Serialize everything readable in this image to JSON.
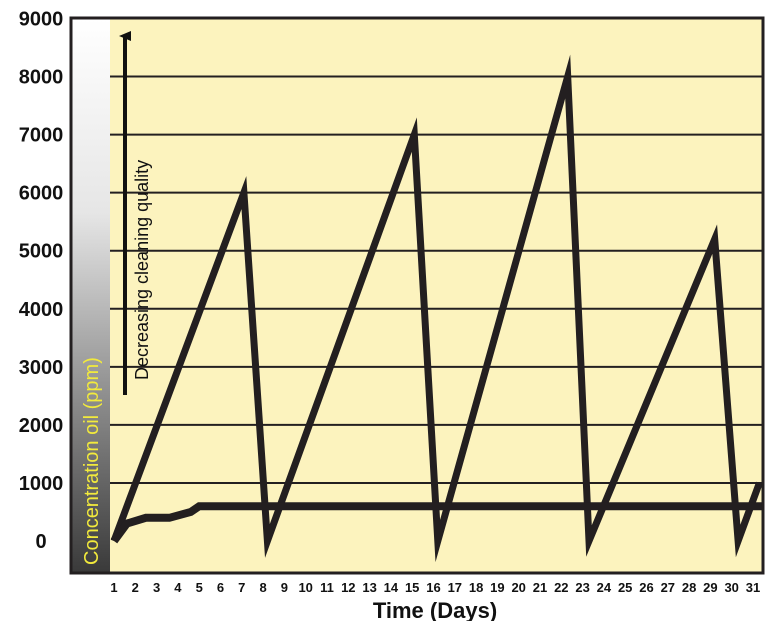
{
  "chart_data": {
    "type": "line",
    "xlabel": "Time (Days)",
    "ylabel": "Concentration oil (ppm)",
    "annotation": "Decreasing cleaning quality",
    "xlim": [
      1,
      31
    ],
    "ylim": [
      0,
      9000
    ],
    "x_ticks": [
      1,
      2,
      3,
      4,
      5,
      6,
      7,
      8,
      9,
      10,
      11,
      12,
      13,
      14,
      15,
      16,
      17,
      18,
      19,
      20,
      21,
      22,
      23,
      24,
      25,
      26,
      27,
      28,
      29,
      30,
      31
    ],
    "y_ticks": [
      0,
      1000,
      2000,
      3000,
      4000,
      5000,
      6000,
      7000,
      8000,
      9000
    ],
    "grid": true,
    "colors": {
      "plot_background": "#fcf3be",
      "line": "#231f20",
      "axis_band_label": "#f2ea3c"
    },
    "series": [
      {
        "points": [
          [
            1,
            0
          ],
          [
            7.1,
            6000
          ],
          [
            8.2,
            0
          ],
          [
            15.1,
            7000
          ],
          [
            16.2,
            0
          ],
          [
            22.3,
            8000
          ],
          [
            23.3,
            0
          ],
          [
            29.2,
            5200
          ],
          [
            30.3,
            0
          ],
          [
            31.3,
            1000
          ]
        ]
      },
      {
        "points": [
          [
            1,
            0
          ],
          [
            1.6,
            300
          ],
          [
            2.5,
            400
          ],
          [
            3.6,
            400
          ],
          [
            4.6,
            500
          ],
          [
            5,
            600
          ],
          [
            31.5,
            600
          ]
        ]
      }
    ]
  }
}
